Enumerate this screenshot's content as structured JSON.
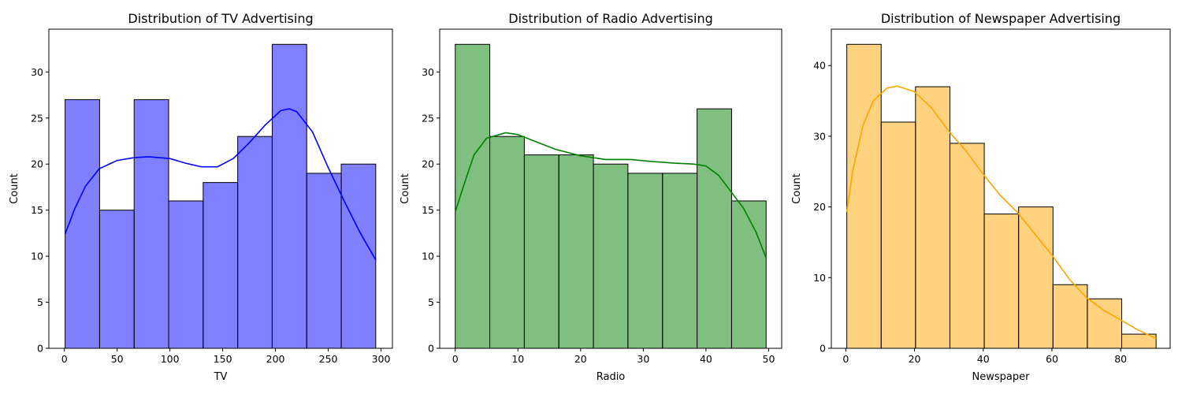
{
  "chart_data": [
    {
      "type": "histogram",
      "title": "Distribution of TV Advertising",
      "xlabel": "TV",
      "ylabel": "Count",
      "color": "#0000ff",
      "xlim": [
        -14.7,
        310.8
      ],
      "ylim": [
        0,
        34.65
      ],
      "xticks": [
        0,
        50,
        100,
        150,
        200,
        250,
        300
      ],
      "yticks": [
        0,
        5,
        10,
        15,
        20,
        25,
        30
      ],
      "bin_edges": [
        0.7,
        33.4,
        66.1,
        98.8,
        131.5,
        164.2,
        196.9,
        229.6,
        262.3,
        295.0
      ],
      "counts": [
        27,
        15,
        27,
        16,
        18,
        23,
        33,
        19,
        20
      ],
      "kde": [
        [
          0.7,
          12.4
        ],
        [
          10,
          15.2
        ],
        [
          20,
          17.6
        ],
        [
          33,
          19.5
        ],
        [
          50,
          20.4
        ],
        [
          66,
          20.7
        ],
        [
          80,
          20.8
        ],
        [
          100,
          20.6
        ],
        [
          115,
          20.1
        ],
        [
          130,
          19.7
        ],
        [
          145,
          19.7
        ],
        [
          160,
          20.6
        ],
        [
          175,
          22.3
        ],
        [
          190,
          24.2
        ],
        [
          205,
          25.8
        ],
        [
          213,
          26.0
        ],
        [
          220,
          25.7
        ],
        [
          235,
          23.5
        ],
        [
          250,
          19.6
        ],
        [
          265,
          16.0
        ],
        [
          280,
          12.6
        ],
        [
          295,
          9.6
        ]
      ]
    },
    {
      "type": "histogram",
      "title": "Distribution of Radio Advertising",
      "xlabel": "Radio",
      "ylabel": "Count",
      "color": "#008000",
      "xlim": [
        -2.48,
        52.08
      ],
      "ylim": [
        0,
        34.65
      ],
      "xticks": [
        0,
        10,
        20,
        30,
        40,
        50
      ],
      "yticks": [
        0,
        5,
        10,
        15,
        20,
        25,
        30
      ],
      "bin_edges": [
        0.0,
        5.51,
        11.02,
        16.53,
        22.04,
        27.55,
        33.07,
        38.58,
        44.09,
        49.6
      ],
      "counts": [
        33,
        23,
        21,
        21,
        20,
        19,
        19,
        26,
        16
      ],
      "kde": [
        [
          0,
          14.8
        ],
        [
          1.5,
          18.0
        ],
        [
          3,
          21.0
        ],
        [
          5,
          22.8
        ],
        [
          8,
          23.4
        ],
        [
          10,
          23.2
        ],
        [
          13,
          22.4
        ],
        [
          16,
          21.6
        ],
        [
          20,
          20.9
        ],
        [
          24,
          20.5
        ],
        [
          28,
          20.5
        ],
        [
          31,
          20.3
        ],
        [
          35,
          20.1
        ],
        [
          38,
          20.0
        ],
        [
          40,
          19.8
        ],
        [
          42,
          18.8
        ],
        [
          44,
          17.0
        ],
        [
          46,
          15.2
        ],
        [
          48,
          12.6
        ],
        [
          49.6,
          9.8
        ]
      ]
    },
    {
      "type": "histogram",
      "title": "Distribution of Newspaper Advertising",
      "xlabel": "Newspaper",
      "ylabel": "Count",
      "color": "#ffa500",
      "xlim": [
        -4.2,
        94.4
      ],
      "ylim": [
        0,
        45.15
      ],
      "xticks": [
        0,
        20,
        40,
        60,
        80
      ],
      "yticks": [
        0,
        10,
        20,
        30,
        40
      ],
      "bin_edges": [
        0.3,
        10.3,
        20.3,
        30.3,
        40.3,
        50.3,
        60.3,
        70.3,
        80.3,
        90.3
      ],
      "counts": [
        43,
        32,
        37,
        29,
        19,
        20,
        9,
        7,
        2
      ],
      "kde": [
        [
          0.3,
          19.3
        ],
        [
          2,
          25.0
        ],
        [
          5,
          31.5
        ],
        [
          8,
          35.0
        ],
        [
          12,
          36.8
        ],
        [
          15,
          37.1
        ],
        [
          20,
          36.3
        ],
        [
          25,
          34.0
        ],
        [
          30,
          30.7
        ],
        [
          35,
          27.9
        ],
        [
          40,
          24.6
        ],
        [
          45,
          21.6
        ],
        [
          50,
          19.2
        ],
        [
          55,
          16.2
        ],
        [
          60,
          13.2
        ],
        [
          65,
          9.8
        ],
        [
          70,
          7.2
        ],
        [
          75,
          5.4
        ],
        [
          80,
          4.0
        ],
        [
          85,
          2.6
        ],
        [
          90.3,
          1.4
        ]
      ]
    }
  ]
}
